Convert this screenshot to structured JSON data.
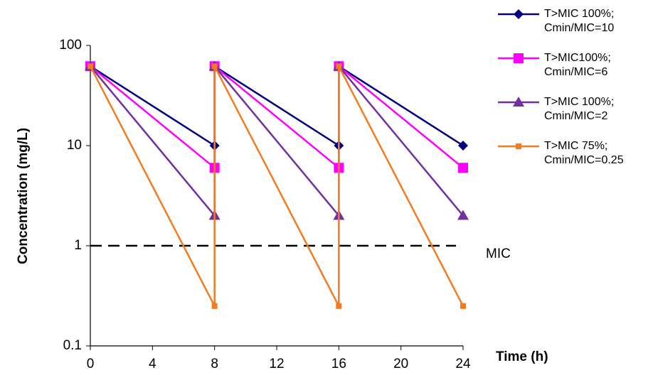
{
  "chart_data": {
    "type": "line",
    "x_label": "Time (h)",
    "y_label": "Concentration (mg/L)",
    "x": [
      0,
      8,
      8,
      16,
      16,
      24
    ],
    "series": [
      {
        "name": "T>MIC 100%;\nCmin/MIC=10",
        "color": "#000080",
        "marker": "diamond",
        "values": [
          62,
          10,
          62,
          10,
          62,
          10
        ]
      },
      {
        "name": "T>MIC100%;\nCmin/MIC=6",
        "color": "#ff00ff",
        "marker": "square",
        "values": [
          62,
          6,
          62,
          6,
          62,
          6
        ]
      },
      {
        "name": "T>MIC 100%;\nCmin/MIC=2",
        "color": "#7030a0",
        "marker": "triangle",
        "values": [
          62,
          2,
          62,
          2,
          62,
          2
        ]
      },
      {
        "name": "T>MIC 75%;\nCmin/MIC=0.25",
        "color": "#f47b20",
        "marker": "small-square",
        "values": [
          62,
          0.25,
          62,
          0.25,
          62,
          0.25
        ]
      }
    ],
    "xlim": [
      0,
      24
    ],
    "xticks": [
      0,
      4,
      8,
      12,
      16,
      20,
      24
    ],
    "ylim": [
      0.1,
      100
    ],
    "yticks": [
      0.1,
      1,
      10,
      100
    ],
    "y_scale": "log",
    "reference_lines": [
      {
        "value": 1,
        "label": "MIC"
      }
    ],
    "legend": "right"
  }
}
